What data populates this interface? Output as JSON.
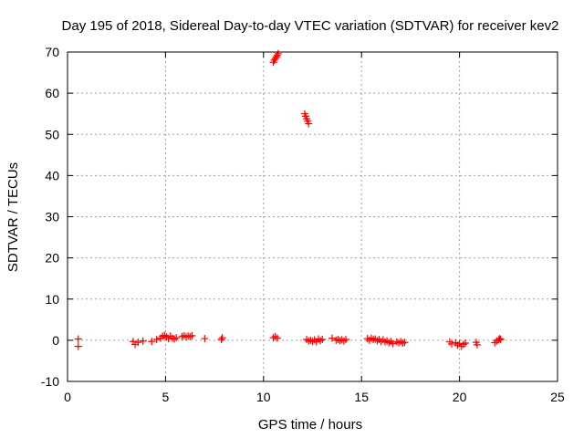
{
  "chart_data": {
    "type": "scatter",
    "title": "Day 195 of 2018, Sidereal Day-to-day VTEC variation (SDTVAR) for receiver kev2",
    "xlabel": "GPS time / hours",
    "ylabel": "SDTVAR / TECUs",
    "xlim": [
      0,
      25
    ],
    "ylim": [
      -10,
      70
    ],
    "xticks": [
      0,
      5,
      10,
      15,
      20,
      25
    ],
    "yticks": [
      -10,
      0,
      10,
      20,
      30,
      40,
      50,
      60,
      70
    ],
    "grid": true,
    "marker": "+",
    "color": "#ff0000",
    "series": [
      {
        "name": "SDTVAR",
        "points": [
          [
            0.55,
            0.3
          ],
          [
            0.55,
            -1.5
          ],
          [
            3.35,
            -0.3
          ],
          [
            3.45,
            -1.0
          ],
          [
            3.6,
            -0.5
          ],
          [
            3.85,
            -0.2
          ],
          [
            4.3,
            -0.3
          ],
          [
            4.55,
            0.2
          ],
          [
            4.75,
            0.5
          ],
          [
            4.85,
            1.0
          ],
          [
            4.95,
            1.2
          ],
          [
            5.05,
            0.8
          ],
          [
            5.15,
            0.4
          ],
          [
            5.25,
            1.0
          ],
          [
            5.35,
            0.5
          ],
          [
            5.45,
            0.3
          ],
          [
            5.55,
            0.6
          ],
          [
            5.85,
            0.9
          ],
          [
            5.95,
            1.1
          ],
          [
            6.05,
            0.8
          ],
          [
            6.15,
            1.0
          ],
          [
            6.25,
            0.9
          ],
          [
            6.35,
            1.1
          ],
          [
            7.0,
            0.4
          ],
          [
            7.85,
            0.2
          ],
          [
            7.9,
            0.6
          ],
          [
            10.5,
            0.6
          ],
          [
            10.6,
            0.9
          ],
          [
            10.7,
            0.5
          ],
          [
            10.5,
            67.5
          ],
          [
            10.55,
            68.0
          ],
          [
            10.6,
            68.4
          ],
          [
            10.65,
            68.8
          ],
          [
            10.7,
            69.2
          ],
          [
            10.75,
            69.6
          ],
          [
            12.1,
            55.0
          ],
          [
            12.15,
            54.4
          ],
          [
            12.2,
            53.8
          ],
          [
            12.25,
            53.2
          ],
          [
            12.3,
            52.6
          ],
          [
            12.2,
            0.2
          ],
          [
            12.3,
            -0.2
          ],
          [
            12.4,
            0.0
          ],
          [
            12.5,
            -0.3
          ],
          [
            12.6,
            0.1
          ],
          [
            12.7,
            -0.4
          ],
          [
            12.8,
            0.3
          ],
          [
            12.9,
            -0.1
          ],
          [
            13.0,
            0.2
          ],
          [
            13.5,
            0.5
          ],
          [
            13.7,
            0.0
          ],
          [
            13.8,
            0.2
          ],
          [
            13.9,
            -0.1
          ],
          [
            14.0,
            0.1
          ],
          [
            14.1,
            -0.2
          ],
          [
            14.2,
            0.2
          ],
          [
            15.3,
            0.4
          ],
          [
            15.4,
            0.0
          ],
          [
            15.5,
            0.5
          ],
          [
            15.6,
            0.2
          ],
          [
            15.7,
            0.3
          ],
          [
            15.8,
            -0.1
          ],
          [
            15.9,
            0.2
          ],
          [
            16.0,
            -0.3
          ],
          [
            16.1,
            0.1
          ],
          [
            16.2,
            -0.4
          ],
          [
            16.3,
            -0.2
          ],
          [
            16.4,
            -0.6
          ],
          [
            16.5,
            -0.3
          ],
          [
            16.6,
            -0.8
          ],
          [
            16.8,
            -0.4
          ],
          [
            16.9,
            -0.6
          ],
          [
            17.0,
            -0.3
          ],
          [
            17.1,
            -0.7
          ],
          [
            17.2,
            -0.5
          ],
          [
            19.5,
            -0.4
          ],
          [
            19.6,
            -0.9
          ],
          [
            19.8,
            -0.6
          ],
          [
            19.9,
            -1.2
          ],
          [
            20.0,
            -0.8
          ],
          [
            20.1,
            -1.5
          ],
          [
            20.2,
            -1.0
          ],
          [
            20.3,
            -0.7
          ],
          [
            20.85,
            -0.5
          ],
          [
            20.9,
            -1.1
          ],
          [
            21.8,
            -0.6
          ],
          [
            21.9,
            -0.2
          ],
          [
            22.0,
            0.1
          ],
          [
            22.05,
            0.4
          ],
          [
            22.1,
            0.2
          ]
        ]
      }
    ]
  }
}
